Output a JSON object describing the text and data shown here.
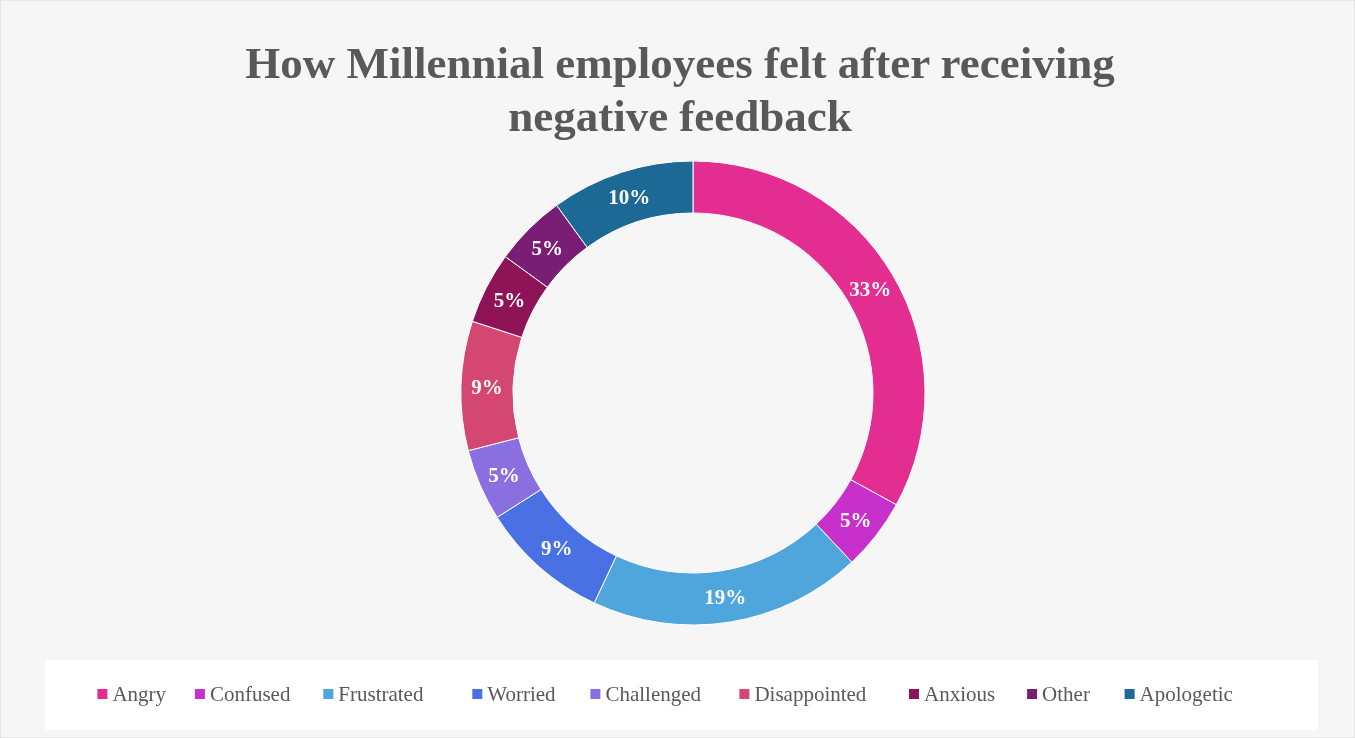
{
  "chart_data": {
    "type": "donut",
    "title": "How Millennial employees felt after receiving negative feedback",
    "categories": [
      "Angry",
      "Confused",
      "Frustrated",
      "Worried",
      "Challenged",
      "Disappointed",
      "Anxious",
      "Other",
      "Apologetic"
    ],
    "values": [
      33,
      5,
      19,
      9,
      5,
      9,
      5,
      5,
      10
    ],
    "colors": [
      "#e32d91",
      "#c830cc",
      "#4ea6dc",
      "#4a71e4",
      "#8a6fe0",
      "#d54773",
      "#8e1457",
      "#7a1d75",
      "#1d6996"
    ],
    "value_labels": [
      "33%",
      "5%",
      "19%",
      "9%",
      "5%",
      "9%",
      "5%",
      "5%",
      "10%"
    ],
    "legend": "bottom"
  }
}
